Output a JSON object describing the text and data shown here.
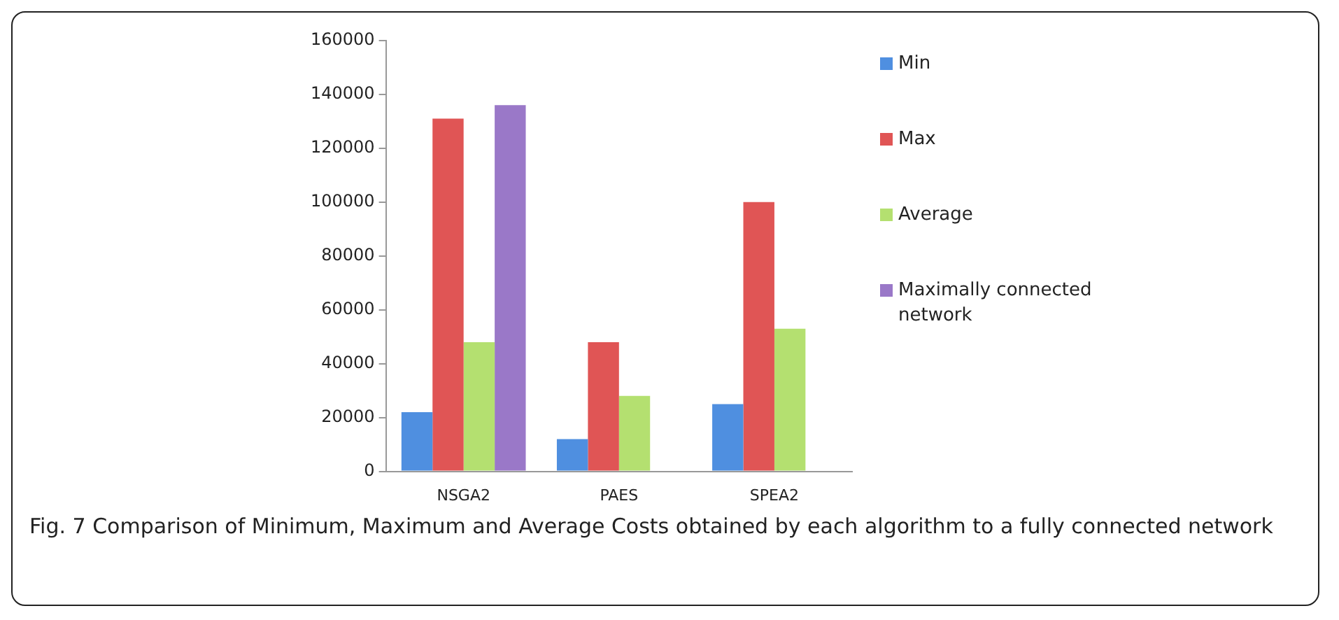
{
  "chart_data": {
    "type": "bar",
    "categories": [
      "NSGA2",
      "PAES",
      "SPEA2"
    ],
    "series": [
      {
        "name": "Min",
        "color": "#4f8fe0",
        "values": [
          22000,
          12000,
          25000
        ]
      },
      {
        "name": "Max",
        "color": "#e05555",
        "values": [
          131000,
          48000,
          100000
        ]
      },
      {
        "name": "Average",
        "color": "#b4e070",
        "values": [
          48000,
          28000,
          53000
        ]
      },
      {
        "name": "Maximally connected network",
        "color": "#9a78c8",
        "values": [
          136000,
          null,
          null
        ]
      }
    ],
    "ylim": [
      0,
      160000
    ],
    "yticks": [
      0,
      20000,
      40000,
      60000,
      80000,
      100000,
      120000,
      140000,
      160000
    ],
    "grid": false,
    "legend": "right",
    "annotations": [
      "Fig. 7 Comparison of Minimum, Maximum and Average Costs obtained by each algorithm to a fully connected network"
    ]
  }
}
